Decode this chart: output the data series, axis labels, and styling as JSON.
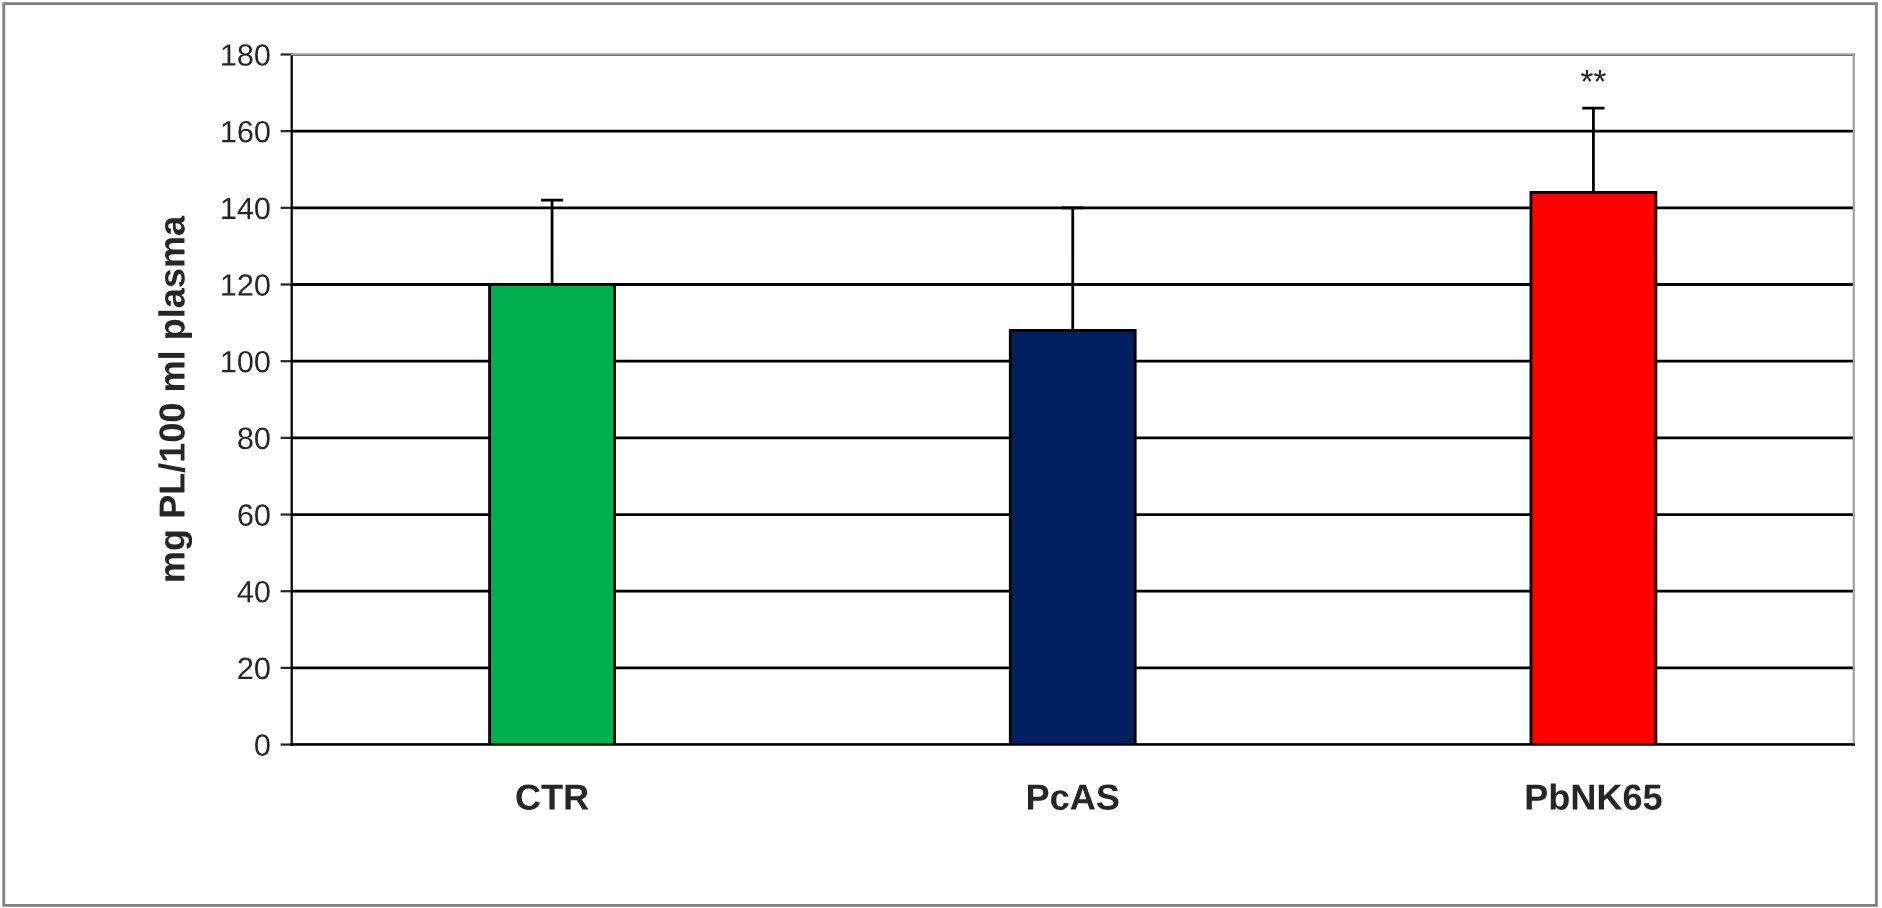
{
  "chart_data": {
    "type": "bar",
    "ylabel": "mg PL/100 ml plasma",
    "categories": [
      "CTR",
      "PcAS",
      "PbNK65"
    ],
    "values": [
      120,
      108,
      144
    ],
    "colors": [
      "#00b050",
      "#002060",
      "#ff0000"
    ],
    "errors": [
      [
        120,
        142
      ],
      [
        108,
        140
      ],
      [
        144,
        166
      ]
    ],
    "ylim": [
      0,
      180
    ],
    "yticks": [
      0,
      20,
      40,
      60,
      80,
      100,
      120,
      140,
      160,
      180
    ],
    "grid": "y",
    "annotations": [
      "**"
    ]
  }
}
